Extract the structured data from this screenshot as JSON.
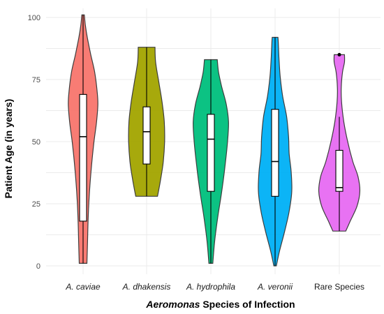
{
  "chart_data": {
    "type": "violin",
    "xlabel_parts": [
      {
        "text": "Aeromonas",
        "italic": true
      },
      {
        "text": " Species of Infection",
        "italic": false
      }
    ],
    "ylabel": "Patient Age (in years)",
    "ylim": [
      0,
      100
    ],
    "yticks": [
      "0",
      "25",
      "50",
      "75",
      "100"
    ],
    "grid": true,
    "categories": [
      "A. caviae",
      "A. dhakensis",
      "A. hydrophila",
      "A. veronii",
      "Rare Species"
    ],
    "category_italic": [
      true,
      true,
      true,
      true,
      false
    ],
    "series": [
      {
        "category": "A. caviae",
        "color": "#F8766D",
        "min": 1,
        "max": 101,
        "box": {
          "q1": 18,
          "median": 52,
          "q3": 69,
          "whisker_low": 1,
          "whisker_high": 101
        },
        "outliers": [],
        "density": [
          [
            1,
            0.12
          ],
          [
            10,
            0.14
          ],
          [
            20,
            0.16
          ],
          [
            30,
            0.2
          ],
          [
            40,
            0.26
          ],
          [
            50,
            0.34
          ],
          [
            58,
            0.42
          ],
          [
            65,
            0.46
          ],
          [
            70,
            0.44
          ],
          [
            78,
            0.36
          ],
          [
            85,
            0.24
          ],
          [
            92,
            0.13
          ],
          [
            97,
            0.07
          ],
          [
            101,
            0.04
          ]
        ]
      },
      {
        "category": "A. dhakensis",
        "color": "#A3A500",
        "min": 28,
        "max": 88,
        "box": {
          "q1": 41,
          "median": 54,
          "q3": 64,
          "whisker_low": 28,
          "whisker_high": 88
        },
        "outliers": [],
        "density": [
          [
            28,
            0.34
          ],
          [
            35,
            0.44
          ],
          [
            42,
            0.52
          ],
          [
            50,
            0.56
          ],
          [
            58,
            0.55
          ],
          [
            66,
            0.48
          ],
          [
            74,
            0.38
          ],
          [
            82,
            0.28
          ],
          [
            88,
            0.26
          ]
        ]
      },
      {
        "category": "A. hydrophila",
        "color": "#00BF7D",
        "min": 1,
        "max": 83,
        "box": {
          "q1": 30,
          "median": 51,
          "q3": 61,
          "whisker_low": 1,
          "whisker_high": 83
        },
        "outliers": [],
        "density": [
          [
            1,
            0.06
          ],
          [
            10,
            0.12
          ],
          [
            20,
            0.22
          ],
          [
            30,
            0.34
          ],
          [
            40,
            0.44
          ],
          [
            50,
            0.52
          ],
          [
            58,
            0.55
          ],
          [
            65,
            0.48
          ],
          [
            72,
            0.34
          ],
          [
            78,
            0.24
          ],
          [
            83,
            0.2
          ]
        ]
      },
      {
        "category": "A. veronii",
        "color": "#00B0F6",
        "min": 0,
        "max": 92,
        "box": {
          "q1": 28,
          "median": 42,
          "q3": 63,
          "whisker_low": 0,
          "whisker_high": 92
        },
        "outliers": [],
        "density": [
          [
            0,
            0.04
          ],
          [
            6,
            0.14
          ],
          [
            14,
            0.3
          ],
          [
            22,
            0.44
          ],
          [
            30,
            0.52
          ],
          [
            38,
            0.5
          ],
          [
            45,
            0.44
          ],
          [
            52,
            0.42
          ],
          [
            60,
            0.36
          ],
          [
            68,
            0.24
          ],
          [
            76,
            0.16
          ],
          [
            84,
            0.12
          ],
          [
            90,
            0.1
          ],
          [
            92,
            0.09
          ]
        ]
      },
      {
        "category": "Rare Species",
        "color": "#E76BF3",
        "min": 14,
        "max": 85,
        "box": {
          "q1": 30,
          "median": 31.5,
          "q3": 46.5,
          "whisker_low": 14,
          "whisker_high": 60
        },
        "outliers": [
          85
        ],
        "density": [
          [
            14,
            0.2
          ],
          [
            18,
            0.34
          ],
          [
            24,
            0.55
          ],
          [
            30,
            0.64
          ],
          [
            36,
            0.58
          ],
          [
            42,
            0.42
          ],
          [
            50,
            0.26
          ],
          [
            58,
            0.14
          ],
          [
            66,
            0.07
          ],
          [
            72,
            0.06
          ],
          [
            78,
            0.1
          ],
          [
            82,
            0.16
          ],
          [
            85,
            0.16
          ]
        ]
      }
    ]
  }
}
